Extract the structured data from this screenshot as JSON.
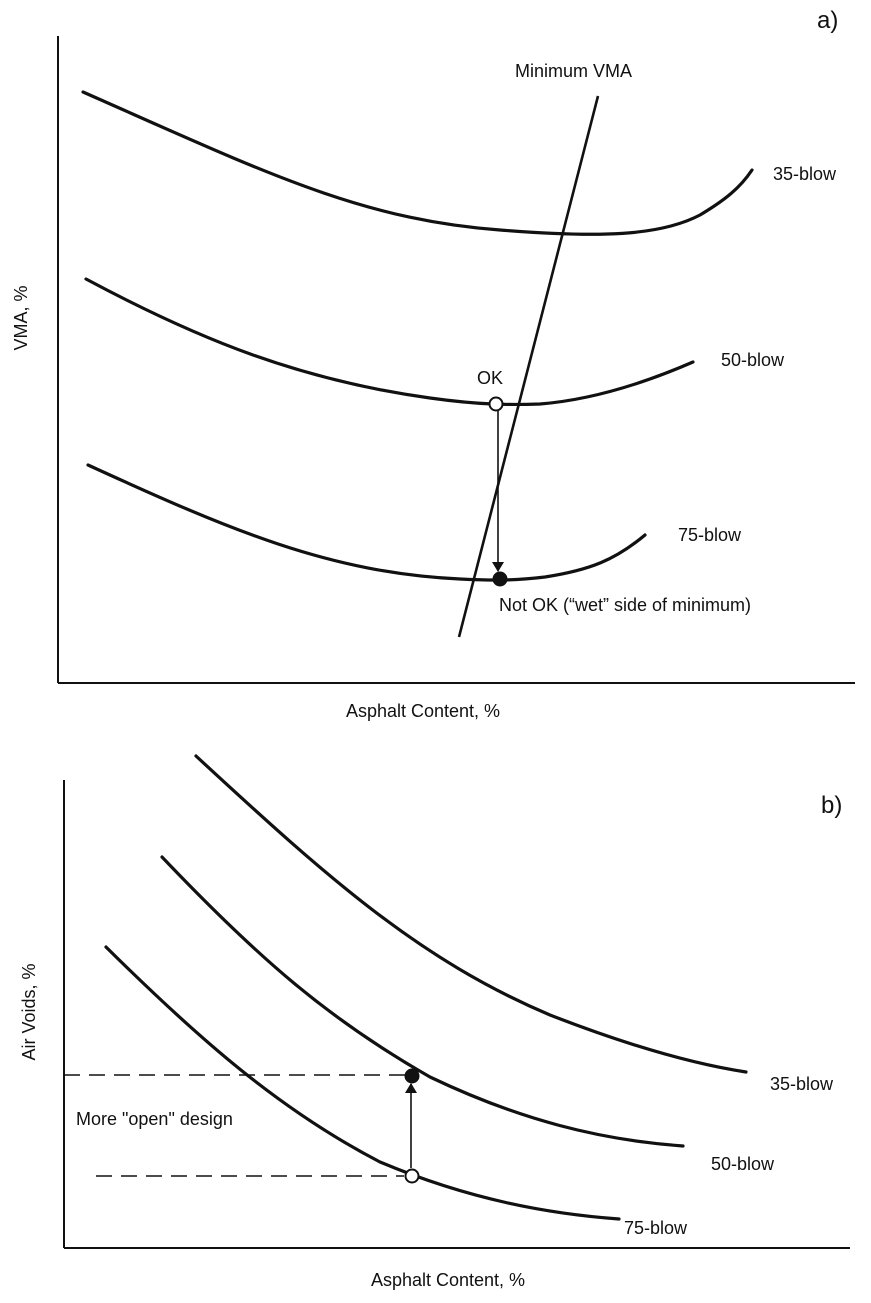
{
  "chart_data": [
    {
      "panel": "a)",
      "type": "line",
      "xlabel": "Asphalt Content, %",
      "ylabel": "VMA, %",
      "series": [
        {
          "name": "35-blow"
        },
        {
          "name": "50-blow"
        },
        {
          "name": "75-blow"
        }
      ],
      "lines": [
        {
          "name": "Minimum VMA"
        }
      ],
      "annotations": [
        {
          "text": "OK",
          "marker": "open-circle",
          "on_series": "50-blow"
        },
        {
          "text": "Not OK (“wet” side of minimum)",
          "marker": "filled-circle",
          "on_series": "75-blow"
        }
      ],
      "arrow": {
        "from": "50-blow",
        "to": "75-blow"
      },
      "ticks": false,
      "grid": false
    },
    {
      "panel": "b)",
      "type": "line",
      "xlabel": "Asphalt Content, %",
      "ylabel": "Air Voids, %",
      "series": [
        {
          "name": "35-blow"
        },
        {
          "name": "50-blow"
        },
        {
          "name": "75-blow"
        }
      ],
      "annotations": [
        {
          "text": "More \"open\" design",
          "marker": "",
          "on_series": ""
        }
      ],
      "markers": [
        {
          "type": "filled-circle",
          "on_series": "50-blow"
        },
        {
          "type": "open-circle",
          "on_series": "75-blow"
        }
      ],
      "arrow": {
        "from": "75-blow",
        "to": "50-blow"
      },
      "ticks": false,
      "grid": false
    }
  ]
}
